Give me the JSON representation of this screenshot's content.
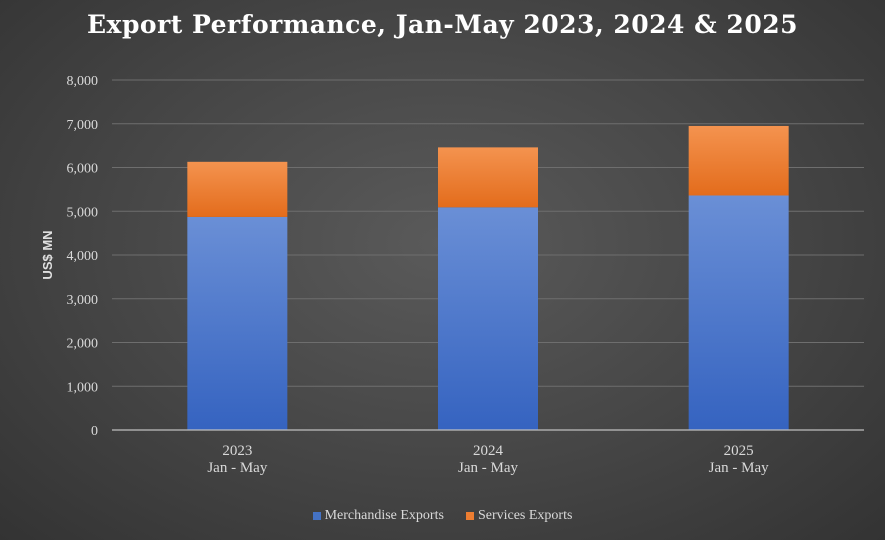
{
  "chart_data": {
    "type": "bar",
    "stacked": true,
    "title": "Export Performance, Jan-May 2023, 2024 & 2025",
    "ylabel": "US$ MN",
    "xlabel": "",
    "categories": [
      {
        "year": "2023",
        "period": "Jan - May"
      },
      {
        "year": "2024",
        "period": "Jan - May"
      },
      {
        "year": "2025",
        "period": "Jan - May"
      }
    ],
    "series": [
      {
        "name": "Merchandise Exports",
        "color": "#4472c4",
        "values": [
          4870,
          5090,
          5360
        ]
      },
      {
        "name": "Services Exports",
        "color": "#ed7d31",
        "values": [
          1260,
          1370,
          1590
        ]
      }
    ],
    "ylim": [
      0,
      8000
    ],
    "yticks": [
      "0",
      "1,000",
      "2,000",
      "3,000",
      "4,000",
      "5,000",
      "6,000",
      "7,000",
      "8,000"
    ],
    "grid": true,
    "legend_position": "bottom"
  }
}
